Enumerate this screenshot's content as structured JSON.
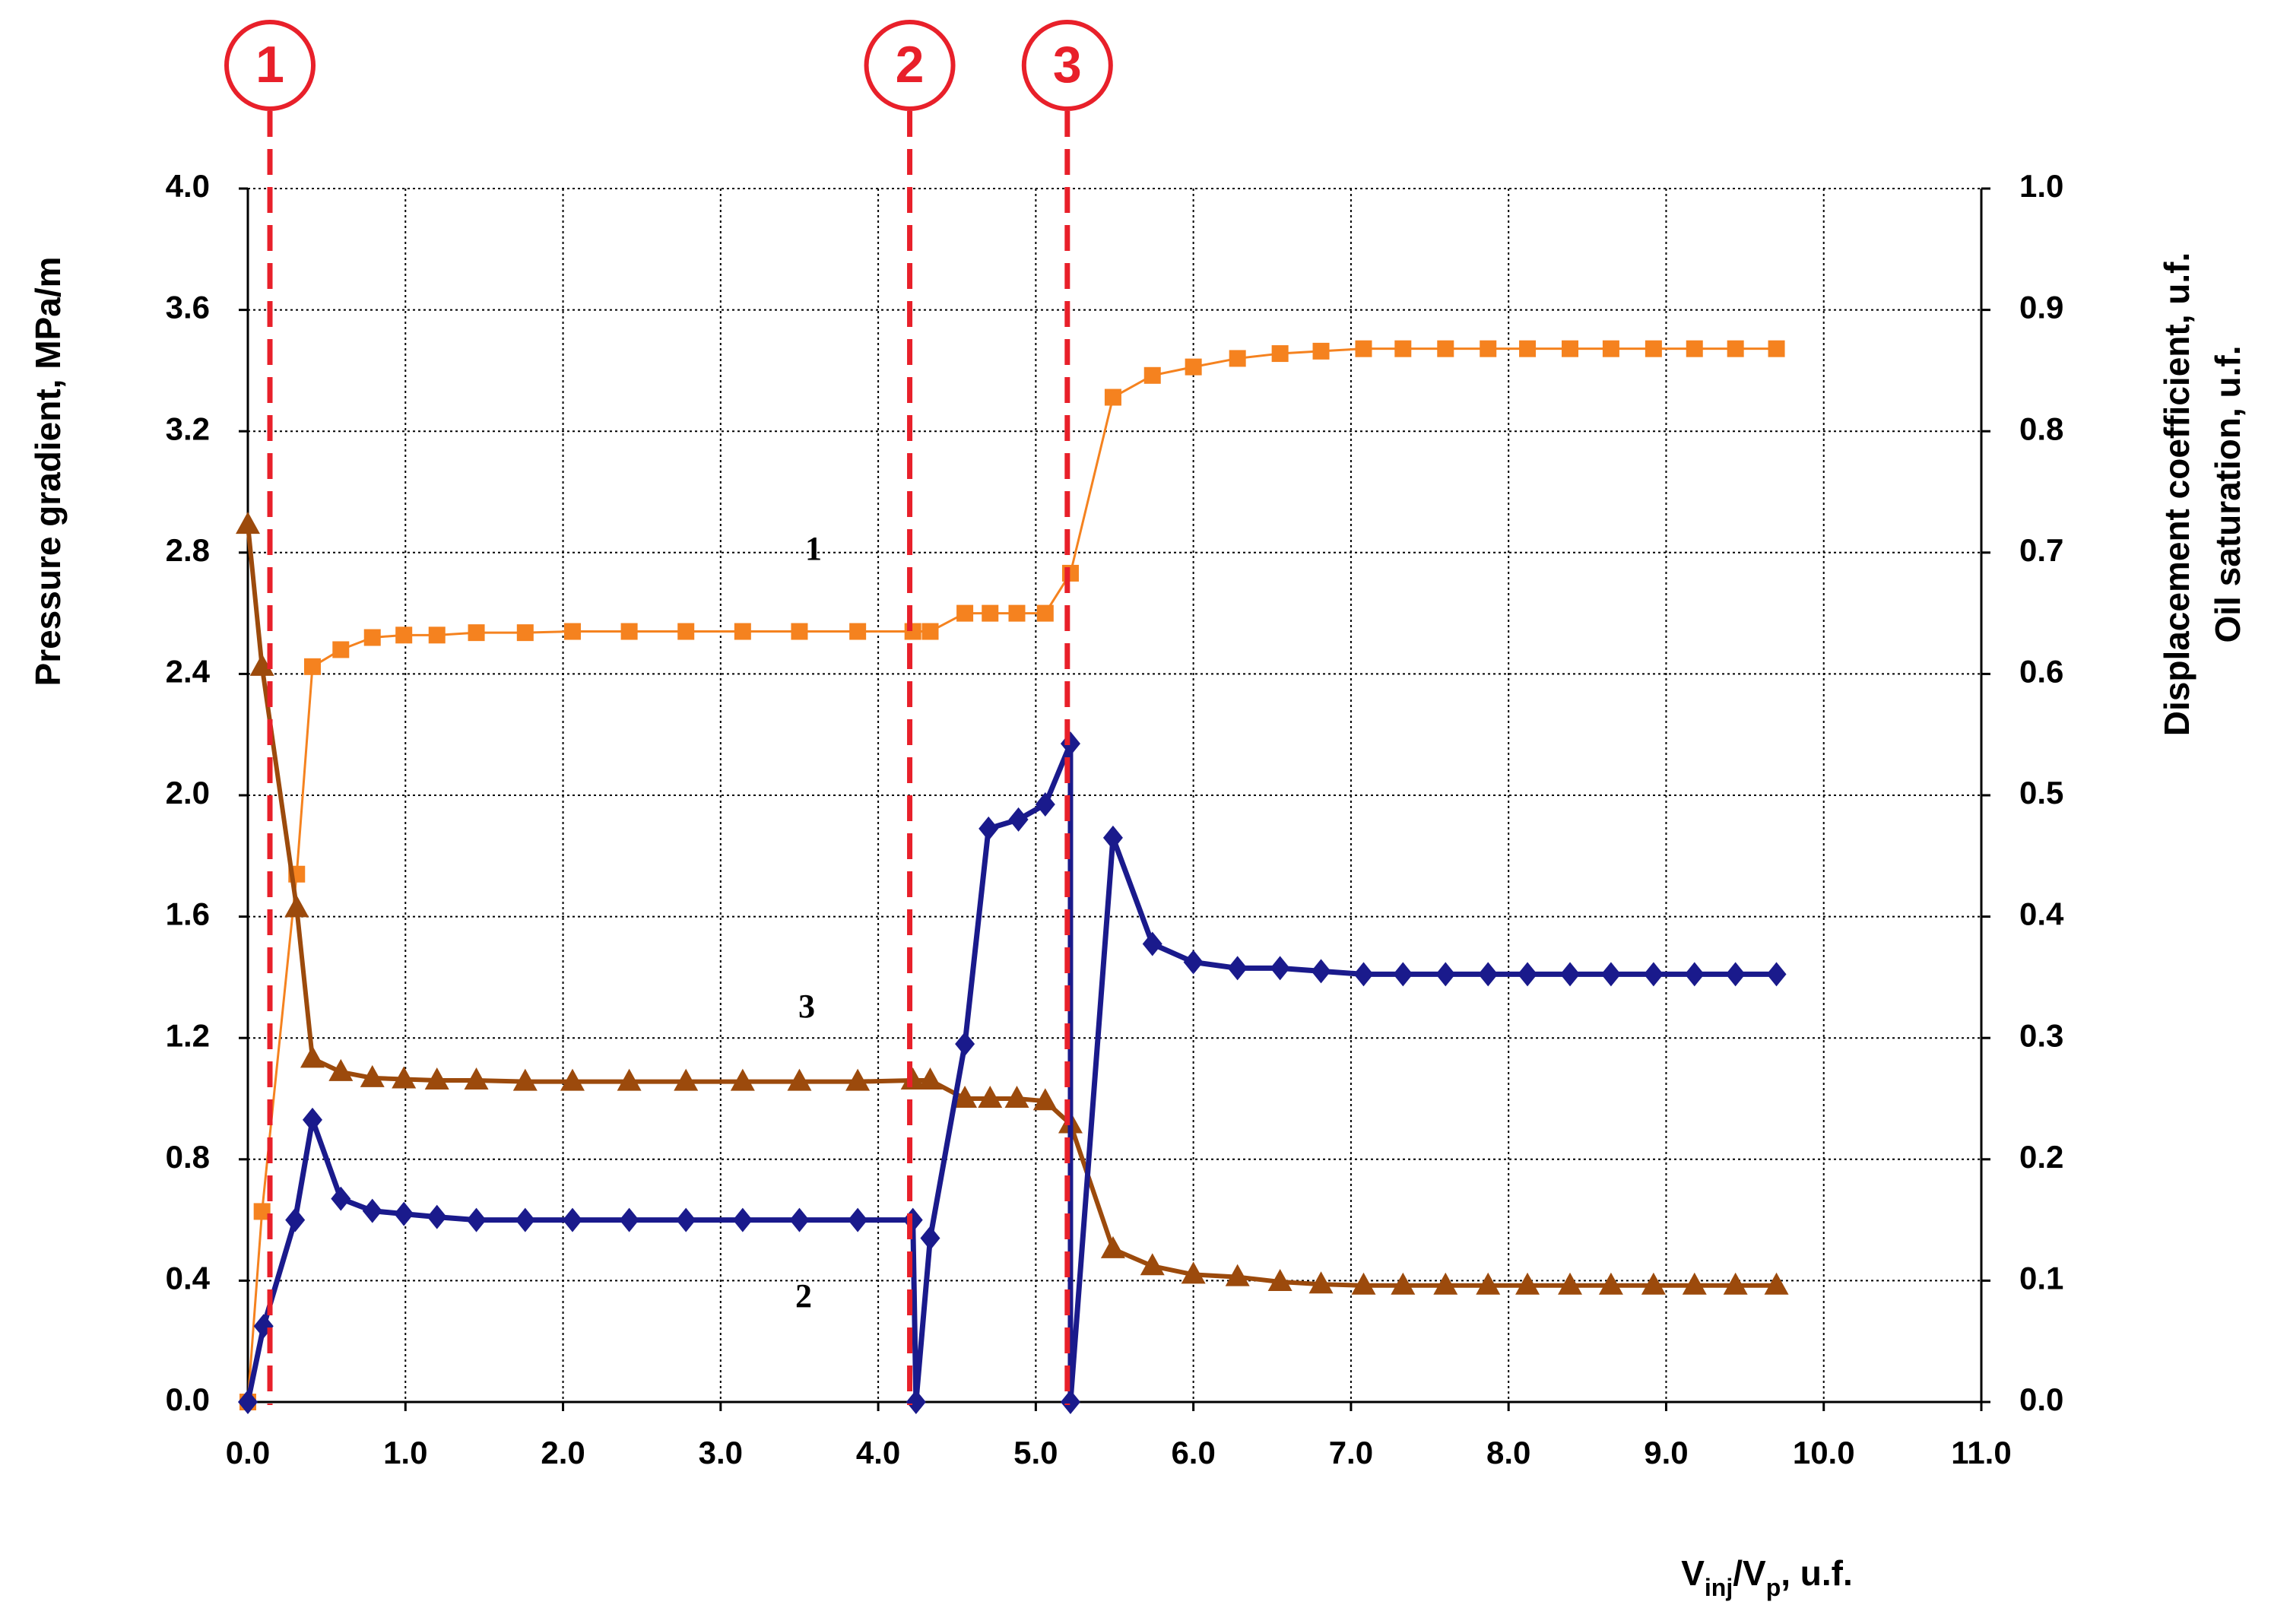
{
  "chart_data": {
    "type": "line",
    "y_label": "Pressure gradient, MPa/m",
    "y2_label": [
      "Displacement coefficient, u.f.",
      "Oil saturation, u.f."
    ],
    "x_label_parts": [
      "V",
      "inj",
      "/V",
      "p",
      ", u.f."
    ],
    "xlim": [
      0,
      11
    ],
    "ylim": [
      0,
      4
    ],
    "y2lim": [
      0,
      1
    ],
    "xticks": [
      {
        "value": 0,
        "label": "0.0"
      },
      {
        "value": 1,
        "label": "1.0"
      },
      {
        "value": 2,
        "label": "2.0"
      },
      {
        "value": 3,
        "label": "3.0"
      },
      {
        "value": 4,
        "label": "4.0"
      },
      {
        "value": 5,
        "label": "5.0"
      },
      {
        "value": 6,
        "label": "6.0"
      },
      {
        "value": 7,
        "label": "7.0"
      },
      {
        "value": 8,
        "label": "8.0"
      },
      {
        "value": 9,
        "label": "9.0"
      },
      {
        "value": 10,
        "label": "10.0"
      },
      {
        "value": 11,
        "label": "11.0"
      }
    ],
    "yticks": [
      {
        "value": 0,
        "label": "0.0"
      },
      0.4,
      0.8,
      1.2,
      1.6,
      {
        "value": 2,
        "label": "2.0"
      },
      2.4,
      2.8,
      3.2,
      3.6,
      {
        "value": 4,
        "label": "4.0"
      }
    ],
    "y2ticks": [
      {
        "value": 0,
        "label": "0.0"
      },
      0.1,
      0.2,
      0.3,
      0.4,
      0.5,
      0.6,
      0.7,
      0.8,
      0.9,
      {
        "value": 1,
        "label": "1.0"
      }
    ],
    "grid": true,
    "series": [
      {
        "name": "1",
        "color": "#f5821f",
        "axis": "y2",
        "marker": "square",
        "x": [
          0,
          0.09,
          0.31,
          0.41,
          0.59,
          0.79,
          0.99,
          1.2,
          1.45,
          1.76,
          2.06,
          2.42,
          2.78,
          3.14,
          3.5,
          3.87,
          4.22,
          4.33,
          4.55,
          4.71,
          4.88,
          5.06,
          5.22,
          5.49,
          5.74,
          6.0,
          6.28,
          6.55,
          6.81,
          7.08,
          7.33,
          7.6,
          7.87,
          8.12,
          8.39,
          8.65,
          8.92,
          9.18,
          9.44,
          9.7
        ],
        "values": [
          0,
          0.157,
          0.435,
          0.606,
          0.62,
          0.63,
          0.632,
          0.632,
          0.634,
          0.634,
          0.635,
          0.635,
          0.635,
          0.635,
          0.635,
          0.635,
          0.635,
          0.635,
          0.65,
          0.65,
          0.65,
          0.65,
          0.683,
          0.828,
          0.846,
          0.853,
          0.86,
          0.864,
          0.866,
          0.868,
          0.868,
          0.868,
          0.868,
          0.868,
          0.868,
          0.868,
          0.868,
          0.868,
          0.868,
          0.868
        ]
      },
      {
        "name": "3",
        "color": "#9c4a0c",
        "axis": "y2",
        "marker": "triangle",
        "x": [
          0,
          0.09,
          0.31,
          0.41,
          0.59,
          0.79,
          0.99,
          1.2,
          1.45,
          1.76,
          2.06,
          2.42,
          2.78,
          3.14,
          3.5,
          3.87,
          4.22,
          4.33,
          4.55,
          4.71,
          4.88,
          5.06,
          5.22,
          5.49,
          5.74,
          6.0,
          6.28,
          6.55,
          6.81,
          7.08,
          7.33,
          7.6,
          7.87,
          8.12,
          8.39,
          8.65,
          8.92,
          9.18,
          9.44,
          9.7
        ],
        "values": [
          0.723,
          0.606,
          0.407,
          0.283,
          0.272,
          0.267,
          0.266,
          0.265,
          0.265,
          0.264,
          0.264,
          0.264,
          0.264,
          0.264,
          0.264,
          0.264,
          0.265,
          0.265,
          0.25,
          0.25,
          0.25,
          0.248,
          0.229,
          0.126,
          0.112,
          0.105,
          0.103,
          0.099,
          0.097,
          0.096,
          0.096,
          0.096,
          0.096,
          0.096,
          0.096,
          0.096,
          0.096,
          0.096,
          0.096,
          0.096
        ]
      },
      {
        "name": "2",
        "color": "#1a1a8c",
        "axis": "y",
        "marker": "diamond",
        "x": [
          0,
          0.1,
          0.3,
          0.41,
          0.59,
          0.79,
          0.99,
          1.2,
          1.45,
          1.76,
          2.06,
          2.42,
          2.78,
          3.14,
          3.5,
          3.87,
          4.22,
          4.24,
          4.33,
          4.55,
          4.7,
          4.89,
          5.06,
          5.22,
          5.22,
          5.49,
          5.74,
          6.0,
          6.28,
          6.55,
          6.81,
          7.08,
          7.33,
          7.6,
          7.87,
          8.12,
          8.39,
          8.65,
          8.92,
          9.18,
          9.44,
          9.7
        ],
        "values": [
          0,
          0.25,
          0.6,
          0.93,
          0.67,
          0.63,
          0.62,
          0.61,
          0.6,
          0.6,
          0.6,
          0.6,
          0.6,
          0.6,
          0.6,
          0.6,
          0.6,
          0,
          0.54,
          1.18,
          1.89,
          1.92,
          1.97,
          2.17,
          0,
          1.86,
          1.51,
          1.45,
          1.43,
          1.43,
          1.42,
          1.41,
          1.41,
          1.41,
          1.41,
          1.41,
          1.41,
          1.41,
          1.41,
          1.41,
          1.41,
          1.41
        ]
      }
    ],
    "reference_lines": [
      {
        "label": "1",
        "x": 0.14
      },
      {
        "label": "2",
        "x": 4.2
      },
      {
        "label": "3",
        "x": 5.2
      }
    ],
    "reference_color": "#e8202a"
  }
}
